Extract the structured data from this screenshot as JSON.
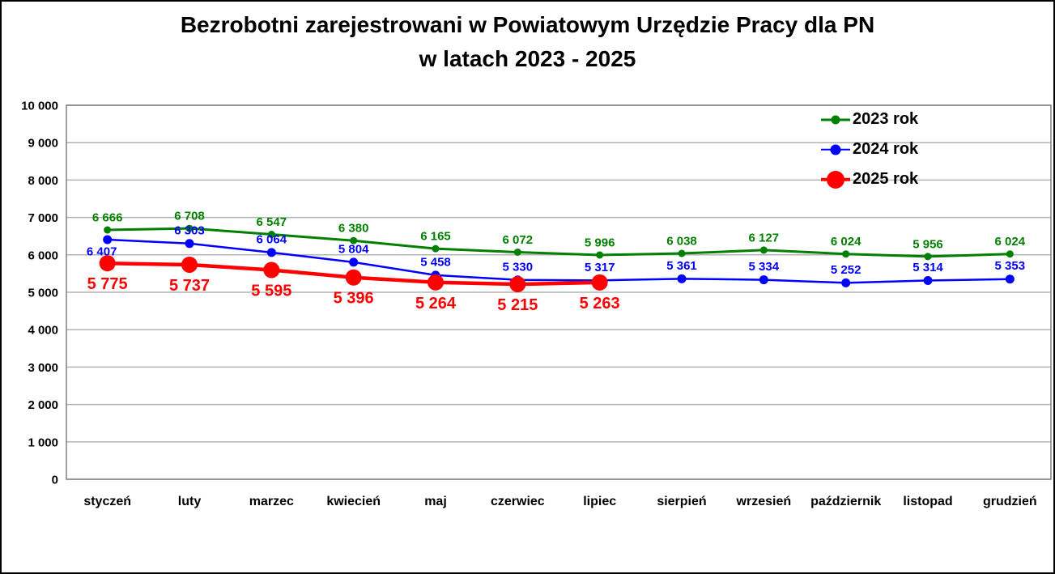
{
  "chart_data": {
    "type": "line",
    "title": "Bezrobotni zarejestrowani w Powiatowym Urzędzie Pracy dla PN w latach 2023 - 2025",
    "title_lines": [
      "Bezrobotni zarejestrowani w Powiatowym Urzędzie Pracy dla PN",
      "w latach 2023 - 2025"
    ],
    "categories": [
      "styczeń",
      "luty",
      "marzec",
      "kwiecień",
      "maj",
      "czerwiec",
      "lipiec",
      "sierpień",
      "wrzesień",
      "październik",
      "listopad",
      "grudzień"
    ],
    "series": [
      {
        "name": "2023 rok",
        "color": "#008000",
        "values": [
          6666,
          6708,
          6547,
          6380,
          6165,
          6072,
          5996,
          6038,
          6127,
          6024,
          5956,
          6024
        ],
        "label_position": "above",
        "marker_radius": 4.5,
        "line_width": 3,
        "label_font_size": 15
      },
      {
        "name": "2024 rok",
        "color": "#0000FF",
        "values": [
          6407,
          6303,
          6064,
          5804,
          5458,
          5330,
          5317,
          5361,
          5334,
          5252,
          5314,
          5353
        ],
        "label_position": "above",
        "label_overrides": {
          "0": {
            "position": "below",
            "dx": -7,
            "dy": -3
          }
        },
        "marker_radius": 5.5,
        "line_width": 2.5,
        "label_font_size": 15
      },
      {
        "name": "2025 rok",
        "color": "#FF0000",
        "values": [
          5775,
          5737,
          5595,
          5396,
          5264,
          5215,
          5263
        ],
        "label_position": "below",
        "marker_radius": 10,
        "line_width": 4.5,
        "label_font_size": 20
      }
    ],
    "xlabel": "",
    "ylabel": "",
    "ylim": [
      0,
      10000
    ],
    "ytick_step": 1000,
    "ytick_labels": [
      "0",
      "1 000",
      "2 000",
      "3 000",
      "4 000",
      "5 000",
      "6 000",
      "7 000",
      "8 000",
      "9 000",
      "10 000"
    ],
    "grid": true,
    "gridline_color": "#B3B3B3",
    "plot_border_color": "#808080",
    "axis_text_color": "#000000",
    "legend_position": "top-right",
    "number_format": "space-thousands"
  }
}
